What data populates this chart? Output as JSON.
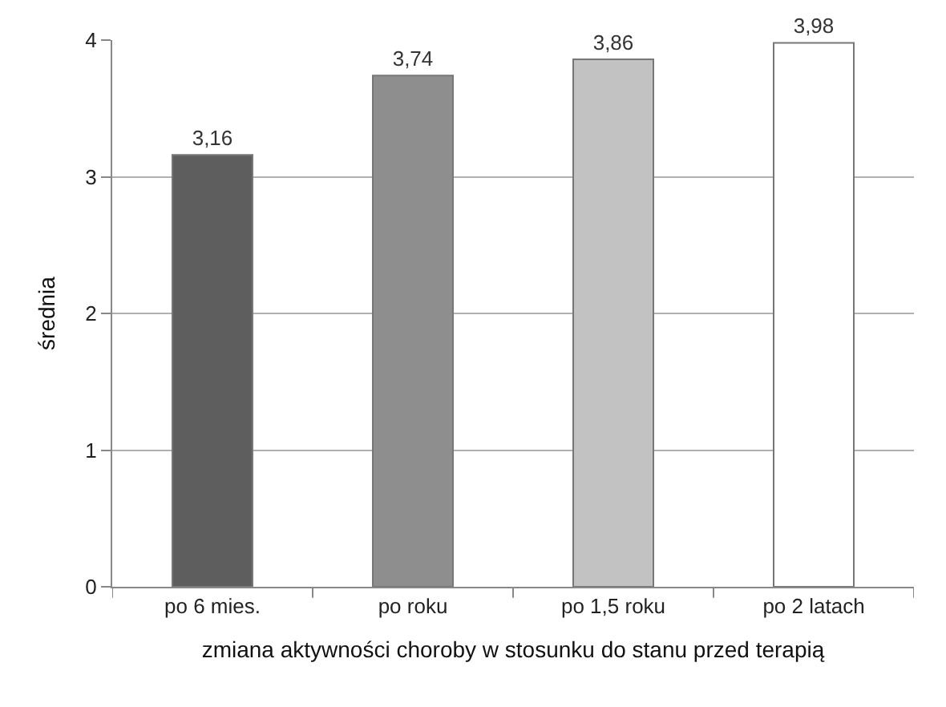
{
  "chart_data": {
    "type": "bar",
    "xlabel": "zmiana aktywności choroby w stosunku do stanu przed terapią",
    "ylabel": "średnia",
    "categories": [
      "po 6 mies.",
      "po roku",
      "po 1,5 roku",
      "po 2 latach"
    ],
    "values": [
      3.16,
      3.74,
      3.86,
      3.98
    ],
    "value_labels": [
      "3,16",
      "3,74",
      "3,86",
      "3,98"
    ],
    "colors": [
      "#5e5e5e",
      "#8e8e8e",
      "#c2c2c2",
      "#ffffff"
    ],
    "ylim": [
      0,
      4
    ],
    "yticks": [
      0,
      1,
      2,
      3,
      4
    ],
    "grid": "y",
    "legend": false
  }
}
